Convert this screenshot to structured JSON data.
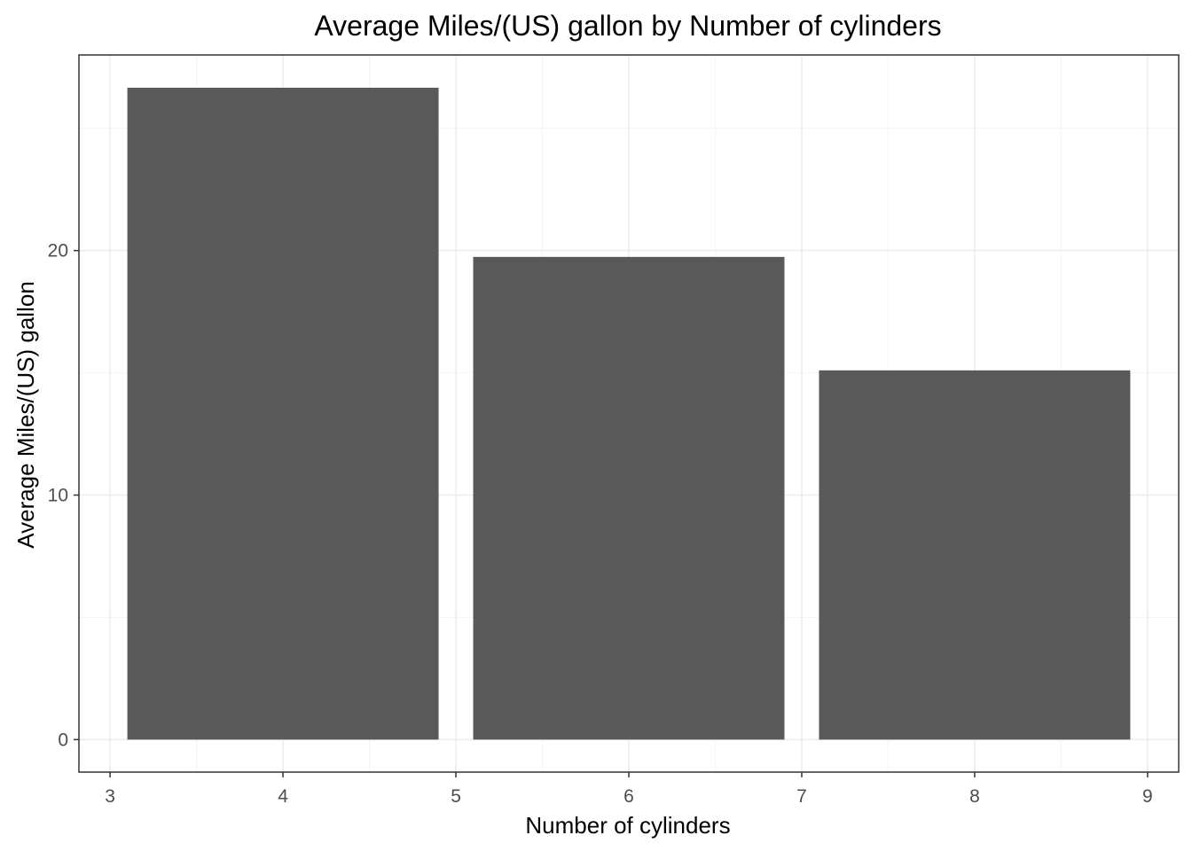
{
  "chart_data": {
    "type": "bar",
    "title": "Average Miles/(US) gallon by Number of cylinders",
    "xlabel": "Number of cylinders",
    "ylabel": "Average Miles/(US) gallon",
    "categories": [
      4,
      6,
      8
    ],
    "values": [
      26.66,
      19.74,
      15.1
    ],
    "bar_width": 1.8,
    "xlim": [
      2.82,
      9.18
    ],
    "ylim": [
      -1.33,
      28.0
    ],
    "x_ticks": [
      3,
      4,
      5,
      6,
      7,
      8,
      9
    ],
    "y_ticks": [
      0,
      10,
      20
    ],
    "x_minor_ticks": [
      3.5,
      4.5,
      5.5,
      6.5,
      7.5,
      8.5
    ],
    "y_minor_ticks": [
      5,
      15,
      25
    ],
    "grid": true,
    "legend": "none",
    "colors": {
      "bar": "#595959",
      "grid_major": "#ebebeb",
      "grid_minor": "#f4f4f4",
      "panel_border": "#333333",
      "tick_text": "#4d4d4d"
    }
  }
}
